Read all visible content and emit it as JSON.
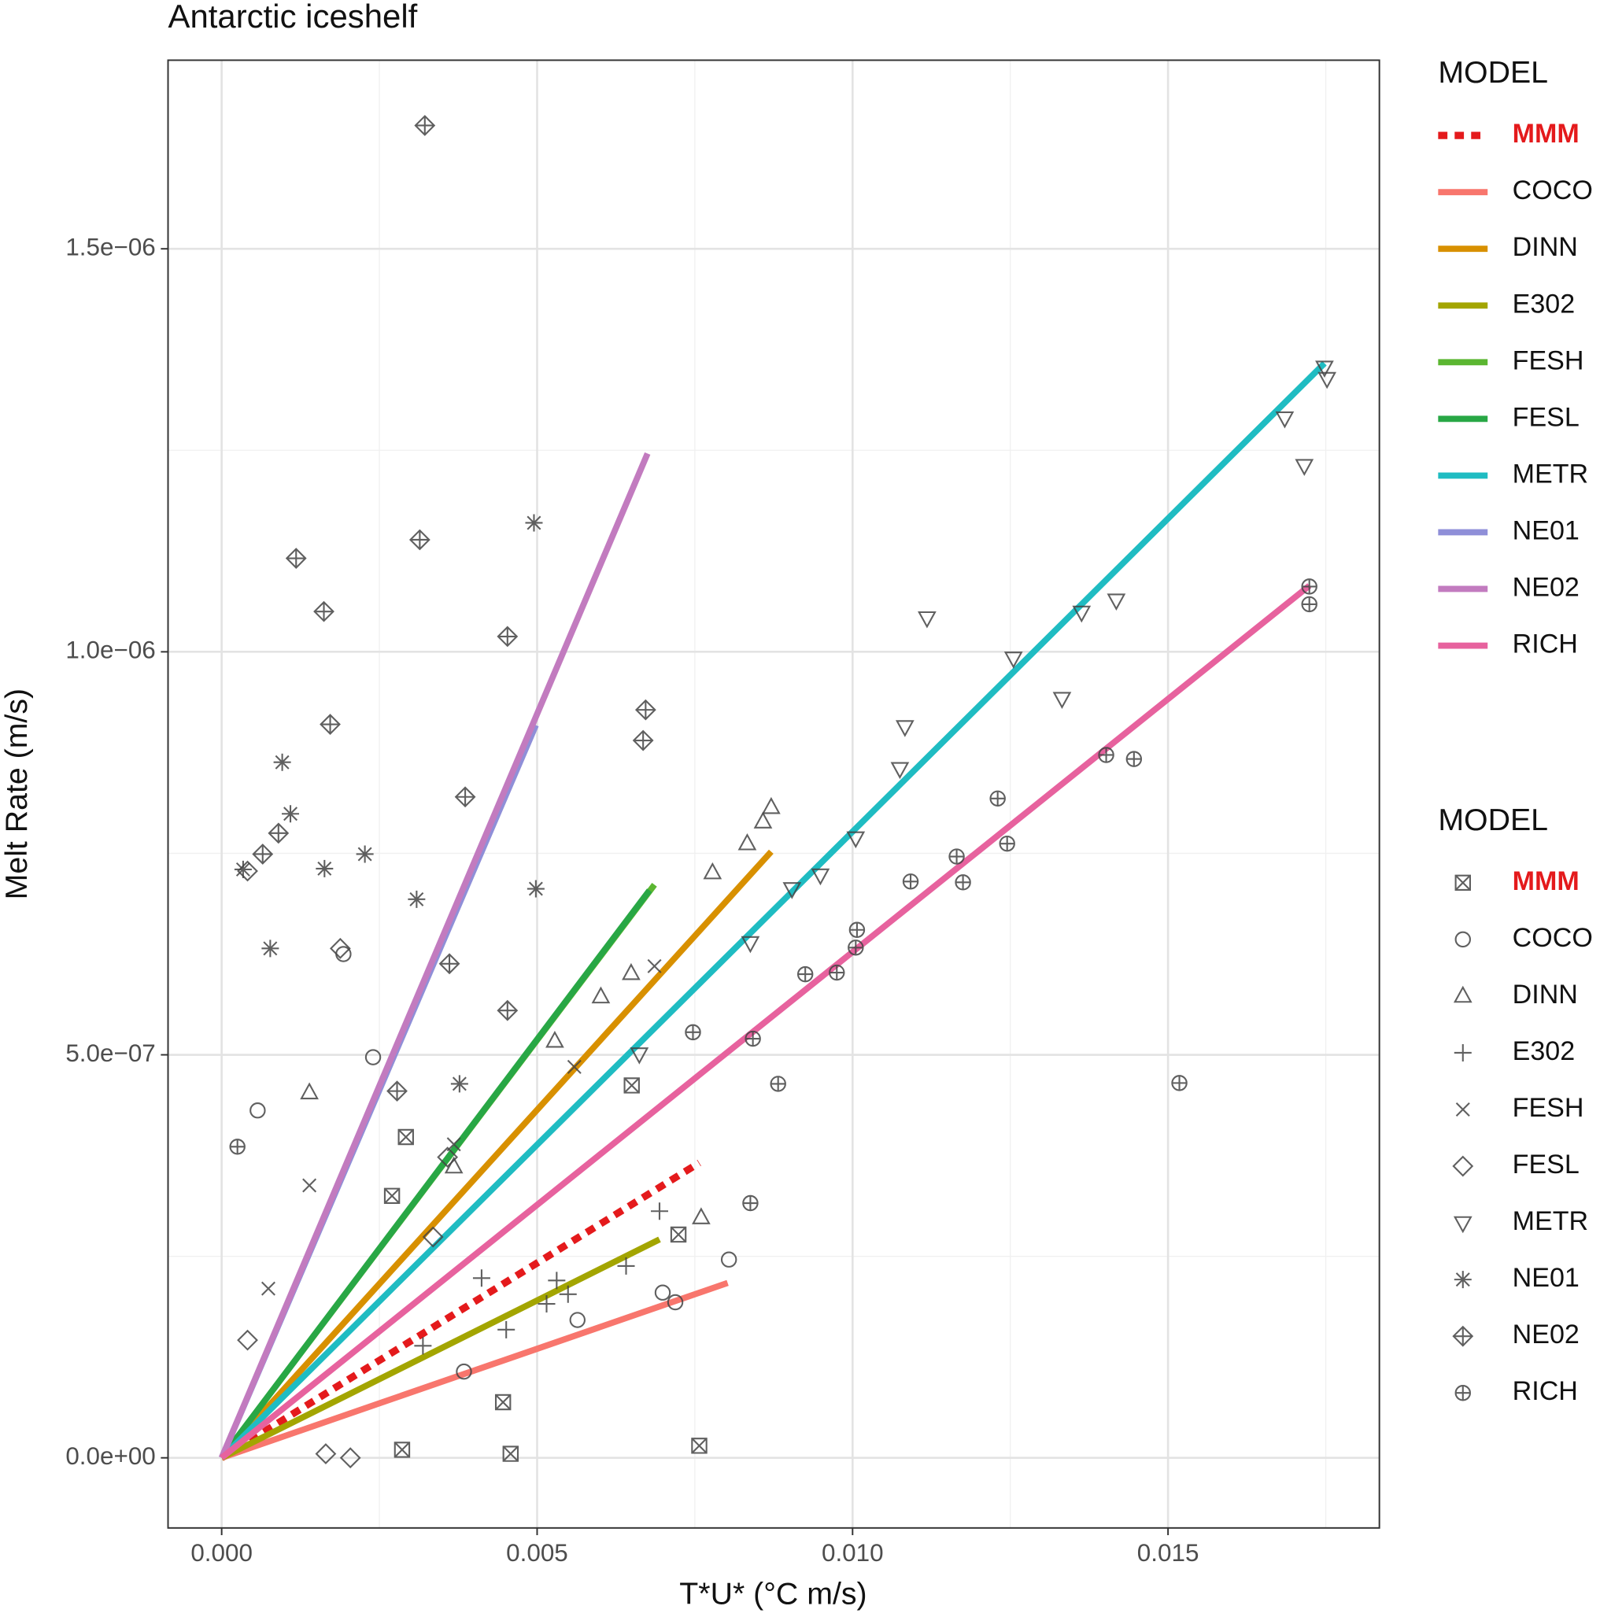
{
  "chart_data": {
    "type": "scatter",
    "title": "Antarctic iceshelf",
    "x_label": "T*U* (°C m/s)",
    "y_label": "Melt Rate (m/s)",
    "legend_line_title": "MODEL",
    "legend_point_title": "MODEL",
    "xlim": [
      -0.00085,
      0.01835
    ],
    "ylim": [
      -8.7e-08,
      1.734e-06
    ],
    "xticks": [
      {
        "value": 0,
        "label": "0.000"
      },
      {
        "value": 0.005,
        "label": "0.005"
      },
      {
        "value": 0.01,
        "label": "0.010"
      },
      {
        "value": 0.015,
        "label": "0.015"
      }
    ],
    "yticks": [
      {
        "value": 0,
        "label": "0.0e+00"
      },
      {
        "value": 5e-07,
        "label": "5.0e−07"
      },
      {
        "value": 1e-06,
        "label": "1.0e−06"
      },
      {
        "value": 1.5e-06,
        "label": "1.5e−06"
      }
    ],
    "grid": true,
    "legend_position": "right",
    "series": [
      {
        "name": "MMM",
        "color": "#e41a1c",
        "highlight": true,
        "line_style": "dotted",
        "shape": "square-x",
        "line_x": [
          0,
          0.00757
        ],
        "line_y": [
          0,
          3.66e-07
        ],
        "x": [
          0.00286,
          0.00458,
          0.00757,
          0.0065,
          0.00724,
          0.00292,
          0.00446,
          0.0027
        ],
        "y": [
          1e-08,
          5e-09,
          1.5e-08,
          4.62e-07,
          2.77e-07,
          3.98e-07,
          6.9e-08,
          3.25e-07
        ]
      },
      {
        "name": "COCO",
        "color": "#f8766d",
        "line_style": "solid",
        "shape": "circle",
        "line_x": [
          0,
          0.00802
        ],
        "line_y": [
          0,
          2.17e-07
        ],
        "x": [
          0.00804,
          0.00699,
          0.00719,
          0.0024,
          0.00193,
          0.00057,
          0.00564,
          0.00384
        ],
        "y": [
          2.46e-07,
          2.05e-07,
          1.93e-07,
          4.97e-07,
          6.25e-07,
          4.31e-07,
          1.71e-07,
          1.07e-07
        ]
      },
      {
        "name": "DINN",
        "color": "#d89000",
        "line_style": "solid",
        "shape": "triangle-up",
        "line_x": [
          0,
          0.00871
        ],
        "line_y": [
          0,
          7.52e-07
        ],
        "x": [
          0.00871,
          0.00858,
          0.00833,
          0.00778,
          0.00649,
          0.00601,
          0.00528,
          0.0076,
          0.00368,
          0.00139
        ],
        "y": [
          8.07e-07,
          7.89e-07,
          7.62e-07,
          7.26e-07,
          6.01e-07,
          5.72e-07,
          5.17e-07,
          2.98e-07,
          3.61e-07,
          4.53e-07
        ]
      },
      {
        "name": "E302",
        "color": "#a3a500",
        "line_style": "solid",
        "shape": "plus",
        "line_x": [
          0,
          0.00694
        ],
        "line_y": [
          0,
          2.71e-07
        ],
        "x": [
          0.00694,
          0.00641,
          0.00531,
          0.00549,
          0.00412,
          0.00451,
          0.00319,
          0.00515
        ],
        "y": [
          3.06e-07,
          2.38e-07,
          2.2e-07,
          2.03e-07,
          2.23e-07,
          1.59e-07,
          1.39e-07,
          1.91e-07
        ]
      },
      {
        "name": "FESH",
        "color": "#5bb631",
        "line_style": "solid",
        "shape": "cross",
        "line_x": [
          0,
          0.00686
        ],
        "line_y": [
          0,
          7.11e-07
        ],
        "x": [
          0.00686,
          0.00559,
          0.00368,
          0.00139,
          0.00074
        ],
        "y": [
          6.1e-07,
          4.85e-07,
          3.89e-07,
          3.38e-07,
          2.1e-07
        ]
      },
      {
        "name": "FESL",
        "color": "#28a745",
        "line_style": "solid",
        "shape": "diamond",
        "line_x": [
          0,
          0.00678
        ],
        "line_y": [
          0,
          7.04e-07
        ],
        "x": [
          0.00041,
          0.00188,
          0.00358,
          0.00165,
          0.00204,
          0.00041,
          0.00335
        ],
        "y": [
          7.28e-07,
          6.32e-07,
          3.73e-07,
          5e-09,
          0,
          1.46e-07,
          2.74e-07
        ]
      },
      {
        "name": "METR",
        "color": "#1fbcc2",
        "line_style": "solid",
        "shape": "triangle-down",
        "line_x": [
          0,
          0.01748
        ],
        "line_y": [
          0,
          1.358e-06
        ],
        "x": [
          0.01748,
          0.01752,
          0.01685,
          0.01716,
          0.01418,
          0.01363,
          0.01332,
          0.01255,
          0.01118,
          0.01083,
          0.01075,
          0.01005,
          0.00949,
          0.00904,
          0.00838,
          0.00662
        ],
        "y": [
          1.353e-06,
          1.339e-06,
          1.29e-06,
          1.231e-06,
          1.064e-06,
          1.049e-06,
          9.42e-07,
          9.92e-07,
          1.042e-06,
          9.07e-07,
          8.55e-07,
          7.69e-07,
          7.23e-07,
          7.06e-07,
          6.39e-07,
          5.01e-07
        ]
      },
      {
        "name": "NE01",
        "color": "#8f8fd8",
        "line_style": "solid",
        "shape": "asterisk",
        "line_x": [
          0,
          0.00498
        ],
        "line_y": [
          0,
          9.09e-07
        ],
        "x": [
          0.00495,
          0.00096,
          0.00109,
          0.00034,
          0.00227,
          0.00309,
          0.00498,
          0.00077,
          0.00377,
          0.00163
        ],
        "y": [
          1.16e-06,
          8.63e-07,
          7.99e-07,
          7.3e-07,
          7.49e-07,
          6.93e-07,
          7.06e-07,
          6.32e-07,
          4.64e-07,
          7.31e-07
        ]
      },
      {
        "name": "NE02",
        "color": "#c27bbf",
        "line_style": "solid",
        "shape": "diamond-plus",
        "line_x": [
          0,
          0.00675
        ],
        "line_y": [
          0,
          1.246e-06
        ],
        "x": [
          0.00322,
          0.00118,
          0.00314,
          0.00162,
          0.00453,
          0.00172,
          0.00672,
          0.00668,
          0.00386,
          0.00361,
          0.00453,
          0.00065,
          0.00278,
          0.0009
        ],
        "y": [
          1.653e-06,
          1.116e-06,
          1.139e-06,
          1.05e-06,
          1.019e-06,
          9.1e-07,
          9.28e-07,
          8.9e-07,
          8.2e-07,
          6.13e-07,
          5.55e-07,
          7.49e-07,
          4.55e-07,
          7.75e-07
        ]
      },
      {
        "name": "RICH",
        "color": "#e7629e",
        "line_style": "solid",
        "shape": "circle-plus",
        "line_x": [
          0,
          0.01724
        ],
        "line_y": [
          0,
          1.082e-06
        ],
        "x": [
          0.01724,
          0.01724,
          0.01518,
          0.01402,
          0.01446,
          0.0123,
          0.01245,
          0.01165,
          0.01175,
          0.01092,
          0.01007,
          0.01005,
          0.00975,
          0.00925,
          0.00882,
          0.00842,
          0.00747,
          0.00838,
          0.00025
        ],
        "y": [
          1.081e-06,
          1.059e-06,
          4.65e-07,
          8.72e-07,
          8.67e-07,
          8.18e-07,
          7.62e-07,
          7.46e-07,
          7.14e-07,
          7.15e-07,
          6.55e-07,
          6.33e-07,
          6.02e-07,
          6e-07,
          4.64e-07,
          5.2e-07,
          5.28e-07,
          3.16e-07,
          3.86e-07
        ]
      }
    ]
  }
}
